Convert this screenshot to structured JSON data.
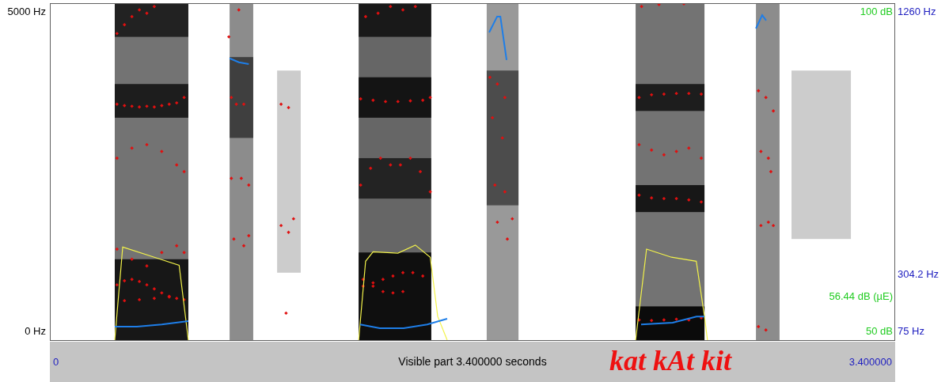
{
  "chart_data": {
    "type": "scatter",
    "annotation": "kat kAt kit",
    "x_label": "Visible part 3.400000 seconds",
    "xlim": [
      0,
      3.4
    ],
    "xticks": [
      0,
      {
        "value": 3.4,
        "label": "3.400000"
      }
    ],
    "ylim": [
      0,
      5000
    ],
    "yticks": [
      {
        "value": 0,
        "label": "0 Hz"
      },
      {
        "value": 5000,
        "label": "5000 Hz"
      }
    ],
    "y2lim": [
      75,
      1260
    ],
    "y2ticks": [
      {
        "value": 75,
        "label": "75 Hz"
      },
      {
        "value": 304.2,
        "label": "304.2 Hz"
      },
      {
        "value": 1260,
        "label": "1260 Hz"
      }
    ],
    "y3lim": [
      50,
      100
    ],
    "y3ticks": [
      {
        "value": 50,
        "label": "50 dB"
      },
      {
        "value": 56.44,
        "label": "56.44 dB (µE)"
      },
      {
        "value": 100,
        "label": "100 dB"
      }
    ],
    "grid": false,
    "spectrogram": {
      "cells": [
        [
          0.261,
          0.557,
          0,
          5000,
          0.55
        ],
        [
          0.261,
          0.557,
          0,
          1200,
          0.8
        ],
        [
          0.261,
          0.557,
          3300,
          3800,
          0.75
        ],
        [
          0.261,
          0.557,
          4500,
          5000,
          0.7
        ],
        [
          0.723,
          0.818,
          0,
          5000,
          0.45
        ],
        [
          0.723,
          0.818,
          3000,
          4200,
          0.55
        ],
        [
          0.914,
          1.009,
          1000,
          4000,
          0.2
        ],
        [
          1.242,
          1.534,
          0,
          5000,
          0.6
        ],
        [
          1.242,
          1.534,
          0,
          1300,
          0.85
        ],
        [
          1.242,
          1.534,
          2100,
          2700,
          0.65
        ],
        [
          1.242,
          1.534,
          3300,
          3900,
          0.8
        ],
        [
          1.242,
          1.534,
          4500,
          5000,
          0.75
        ],
        [
          1.757,
          1.885,
          0,
          5000,
          0.4
        ],
        [
          1.757,
          1.885,
          2000,
          4000,
          0.5
        ],
        [
          2.356,
          2.633,
          0,
          5000,
          0.55
        ],
        [
          2.356,
          2.633,
          0,
          500,
          0.9
        ],
        [
          2.356,
          2.633,
          1900,
          2300,
          0.8
        ],
        [
          2.356,
          2.633,
          3400,
          3800,
          0.75
        ],
        [
          2.84,
          2.935,
          0,
          5000,
          0.45
        ],
        [
          2.983,
          3.222,
          1500,
          4000,
          0.2
        ]
      ]
    },
    "series": [
      {
        "type": "scatter",
        "color": "#e01010",
        "marker": "diamond",
        "x": [
          0.27,
          0.3,
          0.33,
          0.36,
          0.39,
          0.42,
          0.45,
          0.48,
          0.51,
          0.54,
          0.3,
          0.36,
          0.42,
          0.48,
          0.54,
          0.27,
          0.33,
          0.39,
          0.45,
          0.51,
          0.27,
          0.33,
          0.39,
          0.45,
          0.51,
          0.54,
          0.27,
          0.3,
          0.33,
          0.36,
          0.39,
          0.42,
          0.45,
          0.48,
          0.51,
          0.54,
          0.27,
          0.3,
          0.33,
          0.36,
          0.39,
          0.42,
          0.72,
          0.73,
          0.75,
          0.78,
          0.73,
          0.77,
          0.8,
          0.74,
          0.78,
          0.8,
          0.76,
          0.93,
          0.96,
          0.93,
          0.96,
          0.98,
          0.95,
          1.26,
          1.3,
          1.34,
          1.38,
          1.42,
          1.46,
          1.5,
          1.26,
          1.3,
          1.34,
          1.38,
          1.42,
          1.25,
          1.29,
          1.33,
          1.37,
          1.41,
          1.45,
          1.49,
          1.53,
          1.25,
          1.3,
          1.35,
          1.4,
          1.45,
          1.5,
          1.53,
          1.27,
          1.32,
          1.37,
          1.42,
          1.47,
          1.77,
          1.8,
          1.83,
          1.78,
          1.82,
          1.79,
          1.83,
          1.86,
          1.8,
          1.84,
          2.37,
          2.42,
          2.47,
          2.52,
          2.57,
          2.62,
          2.37,
          2.42,
          2.47,
          2.52,
          2.57,
          2.62,
          2.37,
          2.42,
          2.47,
          2.52,
          2.57,
          2.62,
          2.37,
          2.42,
          2.47,
          2.52,
          2.57,
          2.62,
          2.38,
          2.45,
          2.55,
          2.85,
          2.88,
          2.91,
          2.86,
          2.89,
          2.9,
          2.86,
          2.89,
          2.91,
          2.85,
          2.88
        ],
        "values": [
          820,
          880,
          900,
          870,
          820,
          760,
          700,
          650,
          620,
          600,
          585,
          600,
          620,
          640,
          1300,
          1350,
          1200,
          1100,
          1300,
          1400,
          2700,
          2850,
          2900,
          2800,
          2600,
          2500,
          3500,
          3480,
          3470,
          3460,
          3470,
          3460,
          3480,
          3500,
          3520,
          3600,
          4550,
          4680,
          4800,
          4900,
          4850,
          4950,
          4500,
          3600,
          3500,
          3500,
          2400,
          2400,
          2300,
          1500,
          1400,
          1550,
          4900,
          3500,
          3450,
          1700,
          1600,
          1800,
          400,
          800,
          850,
          900,
          950,
          1000,
          1000,
          950,
          900,
          800,
          720,
          700,
          720,
          2300,
          2550,
          2700,
          2600,
          2600,
          2700,
          2500,
          2200,
          3580,
          3560,
          3540,
          3540,
          3550,
          3560,
          3600,
          4800,
          4850,
          4950,
          4900,
          4950,
          3900,
          3800,
          3600,
          3300,
          3000,
          2300,
          2200,
          1800,
          1750,
          1500,
          300,
          290,
          300,
          310,
          300,
          330,
          2150,
          2110,
          2100,
          2100,
          2080,
          2050,
          2900,
          2820,
          2750,
          2800,
          2850,
          2700,
          3600,
          3640,
          3650,
          3660,
          3660,
          3650,
          4950,
          4980,
          4990,
          3700,
          3600,
          3400,
          2800,
          2700,
          2500,
          1700,
          1750,
          1700,
          200,
          150
        ]
      },
      {
        "type": "line",
        "color": "#1e7ee8",
        "axis": "y2",
        "line_style": "solid",
        "x": [
          0.261,
          0.35,
          0.45,
          0.557,
          0.64,
          0.723,
          0.76,
          0.8,
          1.0,
          1.248,
          1.327,
          1.423,
          1.518,
          1.598,
          1.7,
          1.767,
          1.799,
          1.812,
          1.837,
          2.1,
          2.378,
          2.505,
          2.601,
          2.633,
          2.75,
          2.84,
          2.865,
          2.881
        ],
        "values": [
          122,
          122,
          130,
          142,
          null,
          1066,
          1052,
          1046,
          null,
          130,
          117,
          117,
          130,
          150,
          null,
          1157,
          1213,
          1213,
          1060,
          null,
          130,
          136,
          158,
          158,
          null,
          1171,
          1218,
          1199
        ]
      },
      {
        "type": "line",
        "color": "#f2f24a",
        "axis": "y3",
        "line_style": "solid",
        "x": [
          0.261,
          0.293,
          0.42,
          0.52,
          0.557,
          1.0,
          1.242,
          1.27,
          1.3,
          1.4,
          1.47,
          1.53,
          1.56,
          1.598,
          2.0,
          2.356,
          2.4,
          2.5,
          2.6,
          2.633,
          2.645
        ],
        "values": [
          50,
          63.8,
          62.3,
          61.1,
          50,
          null,
          50,
          61.7,
          63.1,
          62.9,
          64.1,
          62.3,
          53.5,
          50,
          null,
          50,
          63.5,
          62.3,
          61.7,
          53.5,
          50
        ]
      }
    ]
  }
}
